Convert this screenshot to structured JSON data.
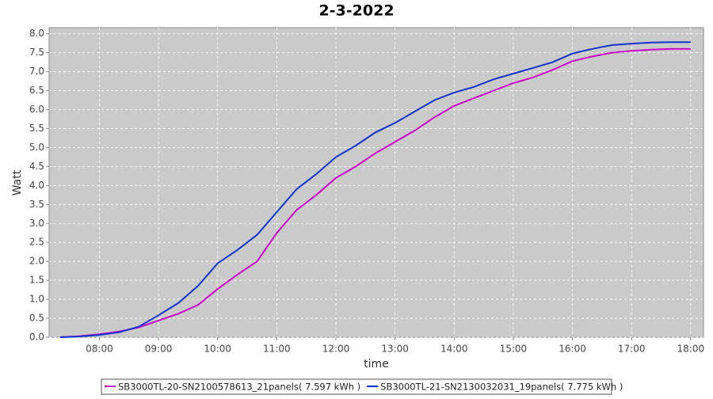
{
  "chart_data": {
    "type": "line",
    "title": "2-3-2022",
    "x_label": "time",
    "y_label": "Watt",
    "x": [
      "07:20",
      "07:40",
      "08:00",
      "08:20",
      "08:40",
      "09:00",
      "09:20",
      "09:40",
      "10:00",
      "10:20",
      "10:40",
      "11:00",
      "11:20",
      "11:40",
      "12:00",
      "12:20",
      "12:40",
      "13:00",
      "13:20",
      "13:40",
      "14:00",
      "14:20",
      "14:40",
      "15:00",
      "15:20",
      "15:40",
      "16:00",
      "16:20",
      "16:40",
      "17:00",
      "17:20",
      "17:40",
      "18:00"
    ],
    "series": [
      {
        "name": "SB3000TL-20-SN2100578613_21panels( 7.597 kWh )",
        "color": "#cc00cc",
        "values": [
          0,
          0.03,
          0.08,
          0.15,
          0.26,
          0.44,
          0.62,
          0.85,
          1.27,
          1.65,
          2.0,
          2.75,
          3.35,
          3.75,
          4.2,
          4.5,
          4.85,
          5.15,
          5.45,
          5.8,
          6.1,
          6.3,
          6.5,
          6.7,
          6.85,
          7.05,
          7.28,
          7.4,
          7.5,
          7.55,
          7.58,
          7.6,
          7.6
        ]
      },
      {
        "name": "SB3000TL-21-SN2130032031_19panels( 7.775 kWh )",
        "color": "#1133cc",
        "values": [
          0,
          0.02,
          0.06,
          0.13,
          0.28,
          0.58,
          0.9,
          1.35,
          1.95,
          2.3,
          2.7,
          3.3,
          3.9,
          4.3,
          4.75,
          5.05,
          5.4,
          5.65,
          5.95,
          6.25,
          6.45,
          6.6,
          6.8,
          6.95,
          7.1,
          7.25,
          7.48,
          7.6,
          7.7,
          7.74,
          7.77,
          7.78,
          7.78
        ]
      }
    ],
    "xlim": [
      "07:09",
      "18:13"
    ],
    "xticks": [
      "08:00",
      "09:00",
      "10:00",
      "11:00",
      "12:00",
      "13:00",
      "14:00",
      "15:00",
      "16:00",
      "17:00",
      "18:00"
    ],
    "ylim": [
      0,
      8.16
    ],
    "yticks": [
      {
        "value": 0,
        "label": "0.0"
      },
      {
        "value": 0.5,
        "label": "0.5"
      },
      {
        "value": 1,
        "label": "1.0"
      },
      {
        "value": 1.5,
        "label": "1.5"
      },
      {
        "value": 2,
        "label": "2.0"
      },
      {
        "value": 2.5,
        "label": "2.5"
      },
      {
        "value": 3,
        "label": "3.0"
      },
      {
        "value": 3.5,
        "label": "3.5"
      },
      {
        "value": 4,
        "label": "4.0"
      },
      {
        "value": 4.5,
        "label": "4.5"
      },
      {
        "value": 5,
        "label": "5.0"
      },
      {
        "value": 5.5,
        "label": "5.5"
      },
      {
        "value": 6,
        "label": "6.0"
      },
      {
        "value": 6.5,
        "label": "6.5"
      },
      {
        "value": 7,
        "label": "7.0"
      },
      {
        "value": 7.5,
        "label": "7.5"
      },
      {
        "value": 8,
        "label": "8.0"
      }
    ],
    "grid": true
  }
}
